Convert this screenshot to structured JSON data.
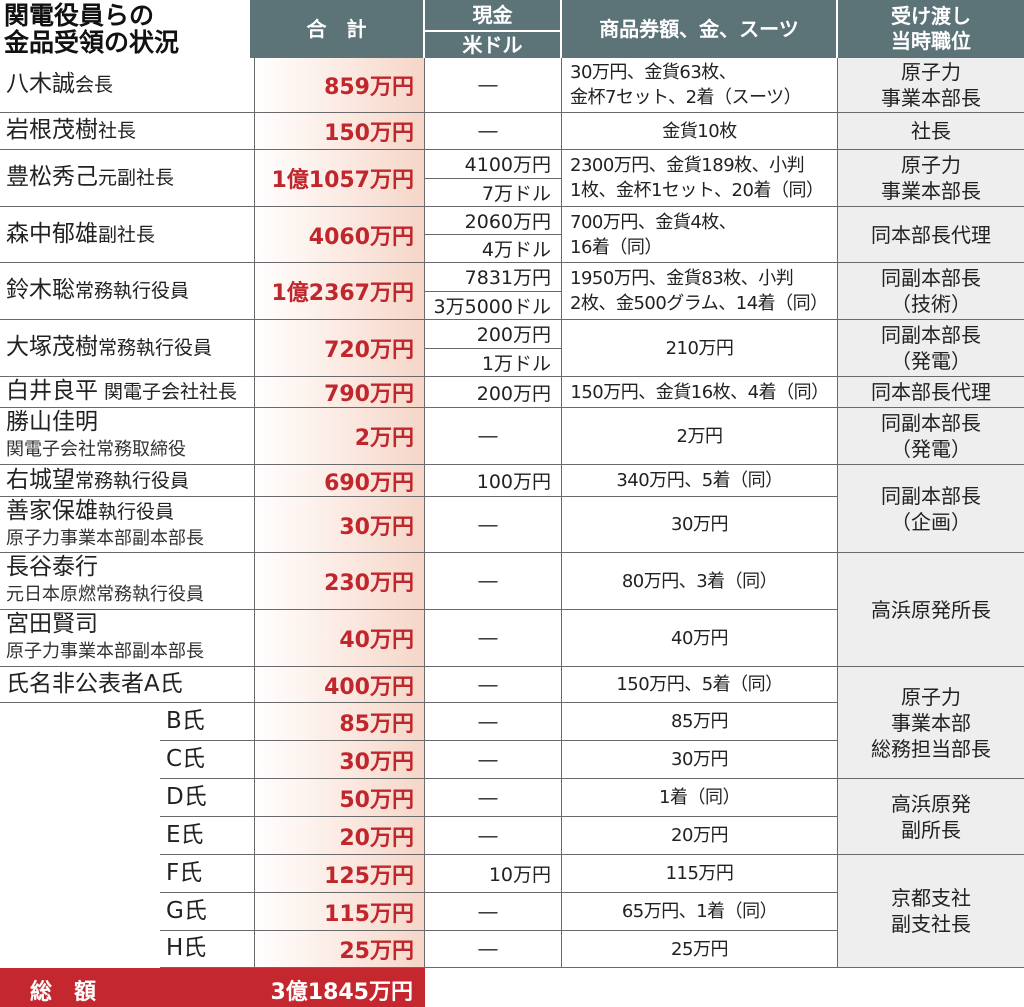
{
  "header": {
    "title": [
      "関電役員らの",
      "金品受領の状況"
    ],
    "total": "合　計",
    "cash": [
      "現金",
      "米ドル"
    ],
    "goods": "商品券額、金、スーツ",
    "position": [
      "受け渡し",
      "当時職位"
    ]
  },
  "rows": [
    {
      "name": "八木誠",
      "role": "会長",
      "total": "859万円",
      "cash": [
        "―"
      ],
      "goods": [
        "30万円、金貨63枚、",
        "金杯7セット、2着（スーツ）"
      ]
    },
    {
      "name": "岩根茂樹",
      "role": "社長",
      "total": "150万円",
      "cash": [
        "―"
      ],
      "goods": [
        "金貨10枚"
      ]
    },
    {
      "name": "豊松秀己",
      "role": "元副社長",
      "total": "1億1057万円",
      "cash": [
        "4100万円",
        "7万ドル"
      ],
      "goods": [
        "2300万円、金貨189枚、小判",
        "1枚、金杯1セット、20着（同）"
      ]
    },
    {
      "name": "森中郁雄",
      "role": "副社長",
      "total": "4060万円",
      "cash": [
        "2060万円",
        "4万ドル"
      ],
      "goods": [
        "700万円、金貨4枚、",
        "16着（同）"
      ]
    },
    {
      "name": "鈴木聡",
      "role": "常務執行役員",
      "total": "1億2367万円",
      "cash": [
        "7831万円",
        "3万5000ドル"
      ],
      "goods": [
        "1950万円、金貨83枚、小判",
        "2枚、金500グラム、14着（同）"
      ]
    },
    {
      "name": "大塚茂樹",
      "role": "常務執行役員",
      "total": "720万円",
      "cash": [
        "200万円",
        "1万ドル"
      ],
      "goods": [
        "210万円"
      ]
    },
    {
      "name": "白井良平",
      "role": " 関電子会社社長",
      "total": "790万円",
      "cash": [
        "200万円"
      ],
      "goods": [
        "150万円、金貨16枚、4着（同）"
      ]
    },
    {
      "name": "勝山佳明",
      "sub": "関電子会社常務取締役",
      "total": "2万円",
      "cash": [
        "―"
      ],
      "goods": [
        "2万円"
      ]
    },
    {
      "name": "右城望",
      "role": "常務執行役員",
      "total": "690万円",
      "cash": [
        "100万円"
      ],
      "goods": [
        "340万円、5着（同）"
      ]
    },
    {
      "name": "善家保雄",
      "role": "執行役員",
      "sub": "原子力事業本部副本部長",
      "total": "30万円",
      "cash": [
        "―"
      ],
      "goods": [
        "30万円"
      ]
    },
    {
      "name": "長谷泰行",
      "sub": "元日本原燃常務執行役員",
      "total": "230万円",
      "cash": [
        "―"
      ],
      "goods": [
        "80万円、3着（同）"
      ]
    },
    {
      "name": "宮田賢司",
      "sub": "原子力事業本部副本部長",
      "total": "40万円",
      "cash": [
        "―"
      ],
      "goods": [
        "40万円"
      ]
    },
    {
      "name": "氏名非公表者A氏",
      "total": "400万円",
      "cash": [
        "―"
      ],
      "goods": [
        "150万円、5着（同）"
      ]
    },
    {
      "name": "B氏",
      "total": "85万円",
      "cash": [
        "―"
      ],
      "goods": [
        "85万円"
      ]
    },
    {
      "name": "C氏",
      "total": "30万円",
      "cash": [
        "―"
      ],
      "goods": [
        "30万円"
      ]
    },
    {
      "name": "D氏",
      "total": "50万円",
      "cash": [
        "―"
      ],
      "goods": [
        "1着（同）"
      ]
    },
    {
      "name": "E氏",
      "total": "20万円",
      "cash": [
        "―"
      ],
      "goods": [
        "20万円"
      ]
    },
    {
      "name": "F氏",
      "total": "125万円",
      "cash": [
        "10万円"
      ],
      "goods": [
        "115万円"
      ]
    },
    {
      "name": "G氏",
      "total": "115万円",
      "cash": [
        "―"
      ],
      "goods": [
        "65万円、1着（同）"
      ]
    },
    {
      "name": "H氏",
      "total": "25万円",
      "cash": [
        "―"
      ],
      "goods": [
        "25万円"
      ]
    }
  ],
  "positions": [
    [
      "原子力",
      "事業本部長"
    ],
    [
      "社長"
    ],
    [
      "原子力",
      "事業本部長"
    ],
    [
      "同本部長代理"
    ],
    [
      "同副本部長",
      "（技術）"
    ],
    [
      "同副本部長",
      "（発電）"
    ],
    [
      "同本部長代理"
    ],
    [
      "同副本部長",
      "（発電）"
    ],
    [
      "同副本部長",
      "（企画）"
    ],
    [
      "高浜原発所長"
    ],
    [
      "原子力",
      "事業本部",
      "総務担当部長"
    ],
    [
      "高浜原発",
      "副所長"
    ],
    [
      "京都支社",
      "副支社長"
    ]
  ],
  "footer": {
    "label": "総　額",
    "total": "3億1845万円"
  }
}
